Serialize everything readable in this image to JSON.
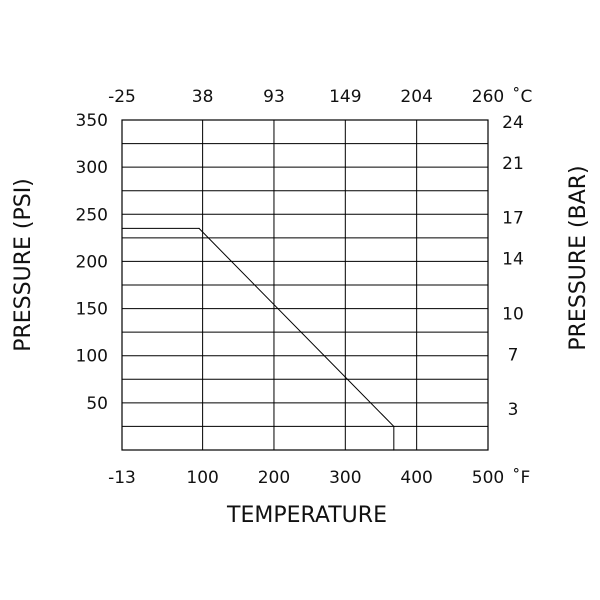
{
  "chart_data": {
    "type": "line",
    "title": "",
    "xlabel": "TEMPERATURE",
    "ylabel": "PRESSURE (PSI)",
    "y2label": "PRESSURE (BAR)",
    "xlim": [
      -13,
      500
    ],
    "ylim": [
      0,
      350
    ],
    "grid": true,
    "x_ticks": [
      -13,
      100,
      200,
      300,
      400,
      500
    ],
    "x_tick_labels": [
      "-13",
      "100",
      "200",
      "300",
      "400",
      "500"
    ],
    "x_unit": "˚F",
    "x2_tick_labels": [
      "-25",
      "38",
      "93",
      "149",
      "204",
      "260"
    ],
    "x2_unit": "˚C",
    "y_ticks": [
      50,
      100,
      150,
      200,
      250,
      300,
      350
    ],
    "y_tick_labels": [
      "50",
      "100",
      "150",
      "200",
      "250",
      "300",
      "350"
    ],
    "y2_ticks": [
      43.5,
      101.5,
      145,
      203,
      246.5,
      304.5,
      348
    ],
    "y2_tick_labels": [
      "3",
      "7",
      "10",
      "14",
      "17",
      "21",
      "24"
    ],
    "series": [
      {
        "x": [
          -13,
          95,
          368,
          368
        ],
        "y": [
          235,
          235,
          25,
          0
        ]
      }
    ]
  }
}
